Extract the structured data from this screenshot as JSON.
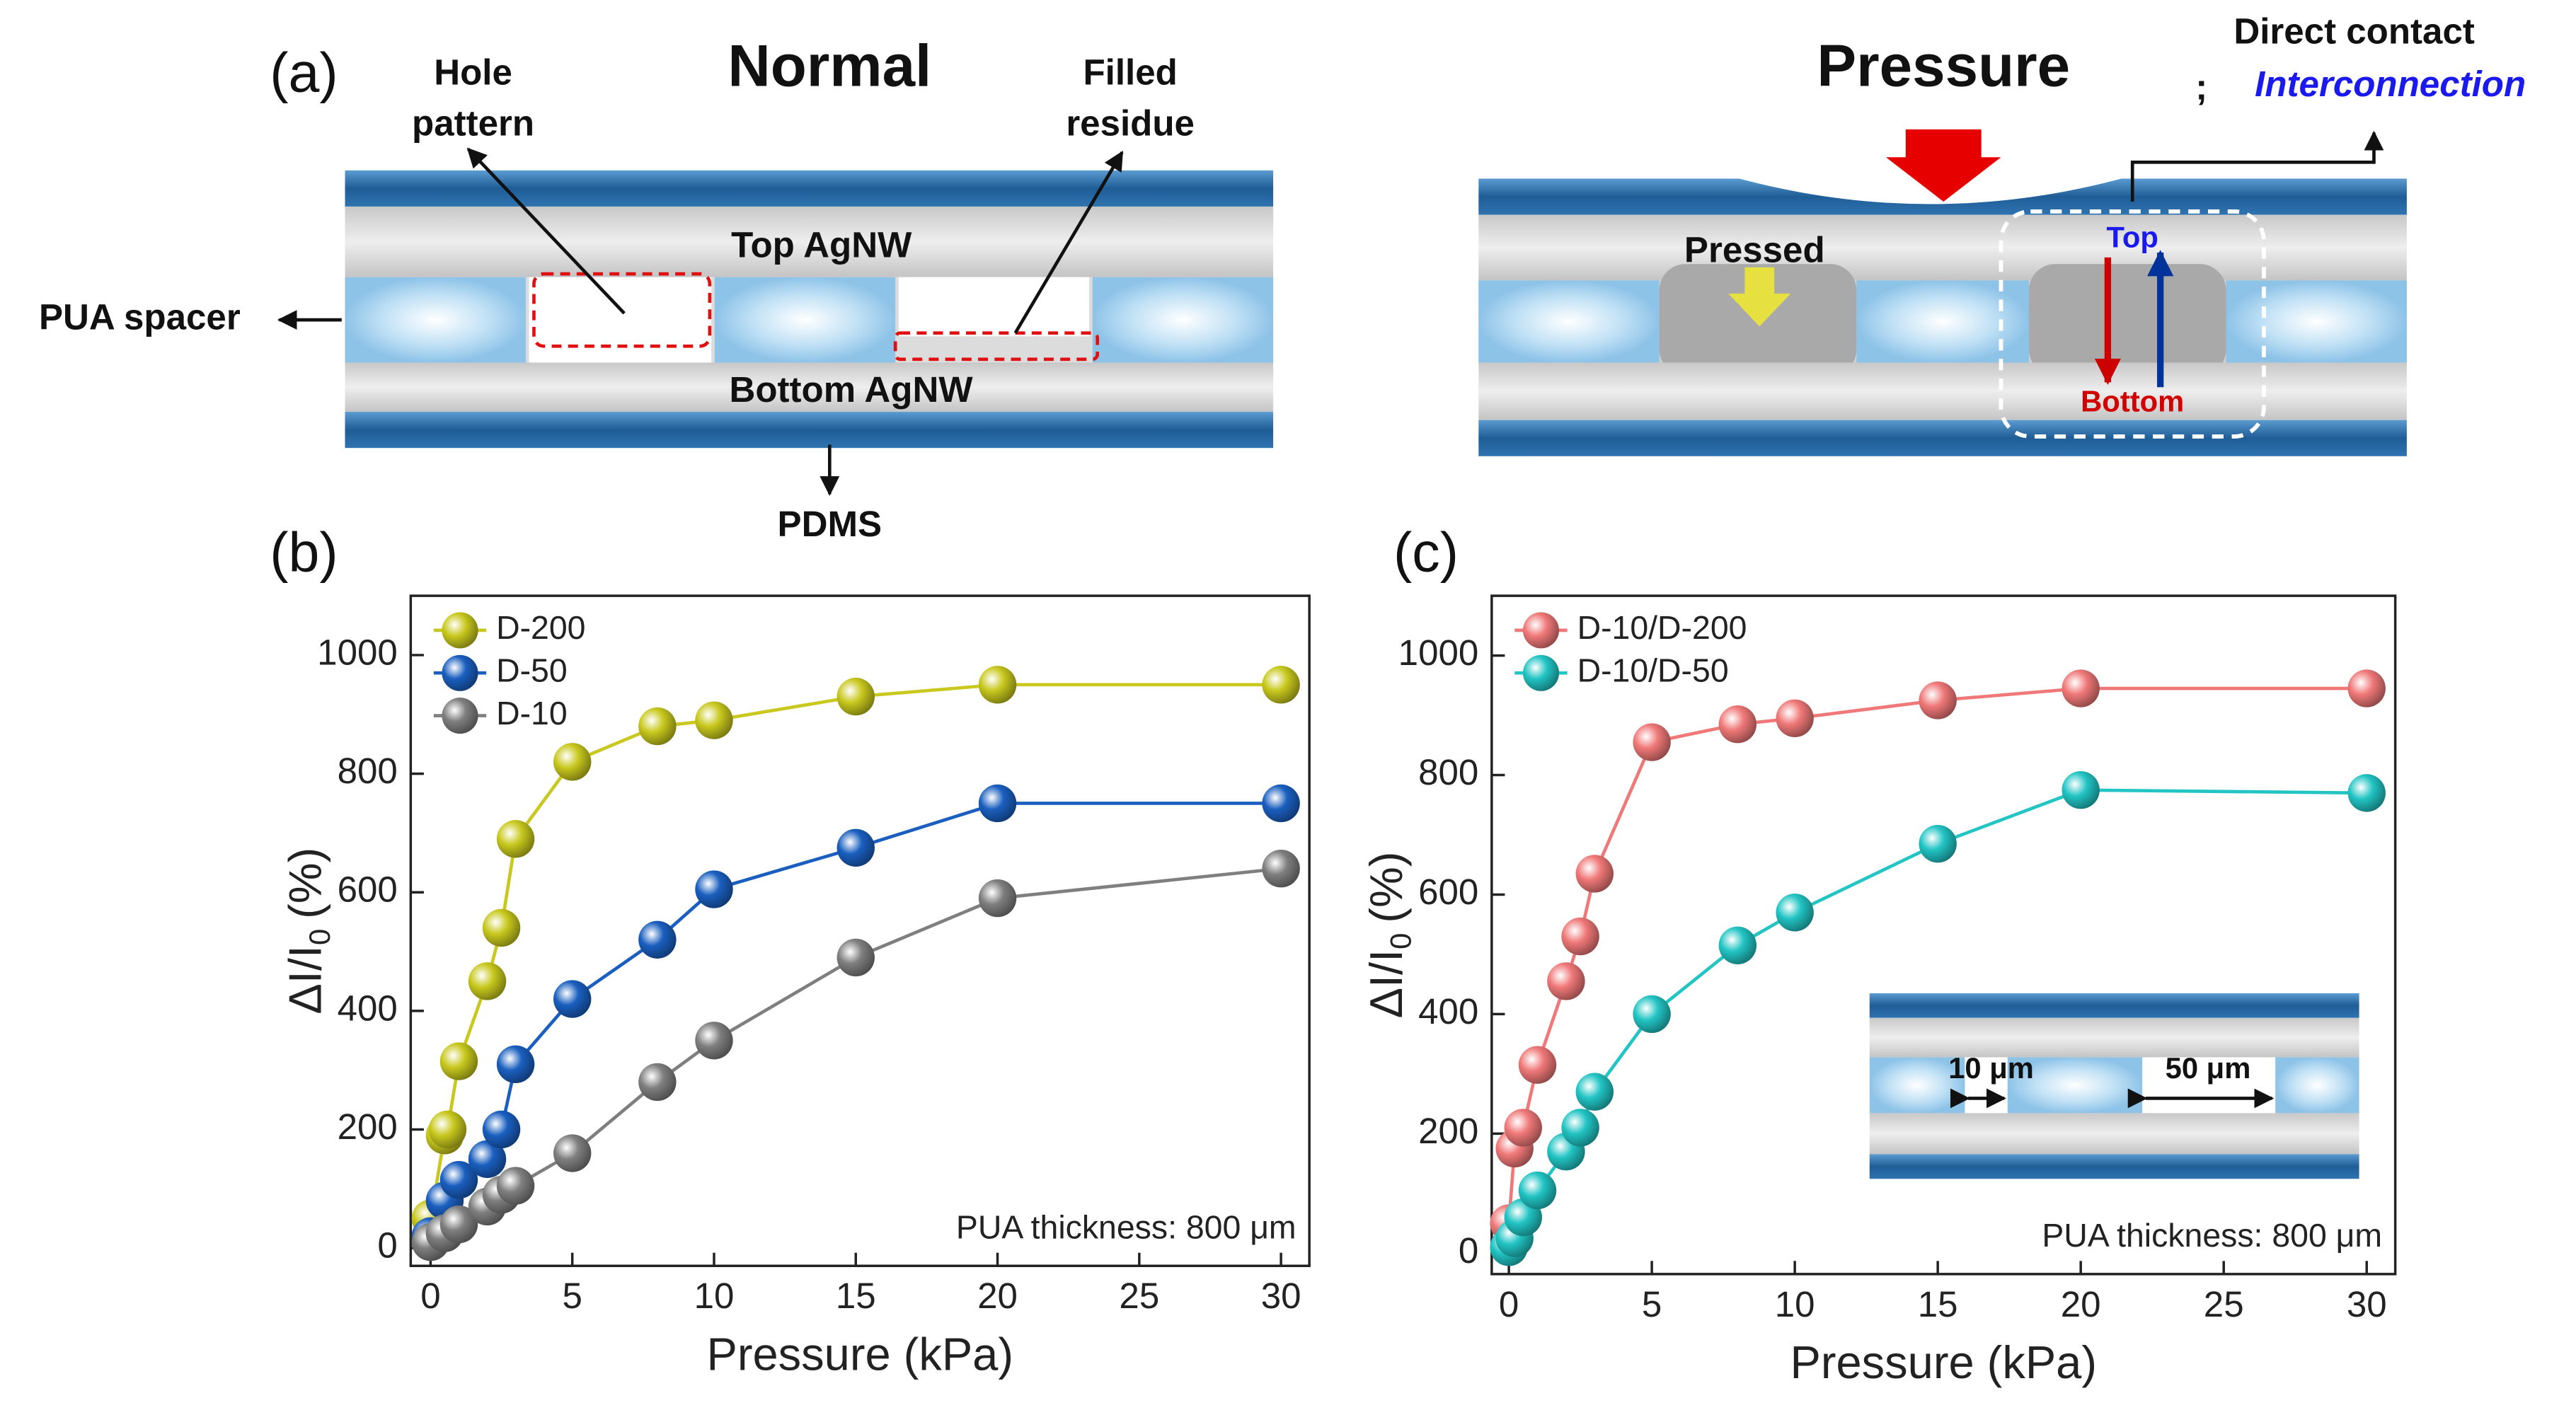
{
  "diagram": {
    "panel_a": "(a)",
    "normal": "Normal",
    "hole_pattern": [
      "Hole",
      "pattern"
    ],
    "filled_residue": [
      "Filled",
      "residue"
    ],
    "top_agnw": "Top AgNW",
    "pua_spacer": "PUA spacer",
    "bottom_agnw": "Bottom AgNW",
    "pdms": "PDMS",
    "pressure": "Pressure",
    "direct_contact": "Direct contact",
    "separator": ";",
    "interconnection": "Interconnection",
    "pressed": "Pressed",
    "top": "Top",
    "bottom": "Bottom",
    "panel_b": "(b)",
    "panel_c": "(c)",
    "inset_10": "10 μm",
    "inset_50": "50 μm"
  },
  "chart_data": [
    {
      "type": "line",
      "xlabel": "Pressure (kPa)",
      "ylabel": {
        "main": "ΔI/I",
        "sub": "0",
        "unit": "(%)"
      },
      "annotation": "PUA thickness: 800 μm",
      "legend": "top-left",
      "xlim": [
        -0.7,
        31
      ],
      "ylim": [
        -30,
        1100
      ],
      "xticks": [
        0,
        5,
        10,
        15,
        20,
        25,
        30
      ],
      "yticks": [
        0,
        200,
        400,
        600,
        800,
        1000
      ],
      "series": [
        {
          "name": "D-200",
          "color": "#c8c81e",
          "x": [
            0,
            0.5,
            0.6,
            1,
            2,
            2.5,
            3,
            5,
            8,
            10,
            15,
            20,
            30
          ],
          "values": [
            50,
            190,
            200,
            315,
            450,
            540,
            690,
            820,
            880,
            890,
            930,
            950,
            950
          ]
        },
        {
          "name": "D-50",
          "color": "#1a5fbf",
          "x": [
            0,
            0.5,
            1,
            2,
            2.5,
            3,
            5,
            8,
            10,
            15,
            20,
            30
          ],
          "values": [
            20,
            80,
            115,
            150,
            200,
            310,
            420,
            520,
            605,
            675,
            750,
            750
          ]
        },
        {
          "name": "D-10",
          "color": "#7f7f7f",
          "x": [
            0,
            0.5,
            1,
            2,
            2.5,
            3,
            5,
            8,
            10,
            15,
            20,
            30
          ],
          "values": [
            10,
            25,
            40,
            70,
            90,
            105,
            160,
            280,
            350,
            490,
            590,
            640
          ]
        }
      ]
    },
    {
      "type": "line",
      "xlabel": "Pressure (kPa)",
      "ylabel": {
        "main": "ΔI/I",
        "sub": "0",
        "unit": "(%)"
      },
      "annotation": "PUA thickness: 800 μm",
      "legend": "top-left",
      "xlim": [
        -0.6,
        31
      ],
      "ylim": [
        -35,
        1100
      ],
      "xticks": [
        0,
        5,
        10,
        15,
        20,
        25,
        30
      ],
      "yticks": [
        0,
        200,
        400,
        600,
        800,
        1000
      ],
      "series": [
        {
          "name": "D-10/D-200",
          "color": "#f07878",
          "x": [
            0,
            0.2,
            0.5,
            1,
            2,
            2.5,
            3,
            5,
            8,
            10,
            15,
            20,
            30
          ],
          "values": [
            50,
            175,
            210,
            315,
            455,
            530,
            635,
            855,
            885,
            895,
            925,
            945,
            945
          ]
        },
        {
          "name": "D-10/D-50",
          "color": "#22c4c4",
          "x": [
            0,
            0.2,
            0.5,
            1,
            2,
            2.5,
            3,
            5,
            8,
            10,
            15,
            20,
            30
          ],
          "values": [
            10,
            25,
            60,
            105,
            170,
            210,
            270,
            400,
            515,
            570,
            685,
            775,
            770
          ]
        }
      ]
    }
  ]
}
